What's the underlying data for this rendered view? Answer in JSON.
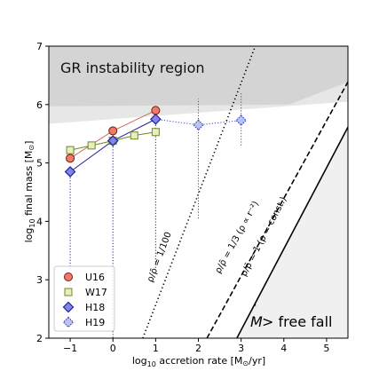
{
  "chart_data": {
    "type": "scatter",
    "title": "",
    "xlabel_prefix": "log",
    "xlabel_sub": "10",
    "xlabel_text": " accretion rate [M",
    "xlabel_sun": "⊙",
    "xlabel_end": "/yr]",
    "ylabel_prefix": "log",
    "ylabel_sub": "10",
    "ylabel_text": " final mass  [M",
    "ylabel_sun": "⊙",
    "ylabel_end": "]",
    "xlim": [
      -1.5,
      5.5
    ],
    "ylim": [
      2,
      7
    ],
    "x_ticks": [
      -1,
      0,
      1,
      2,
      3,
      4,
      5
    ],
    "x_tick_labels": [
      "−1",
      "0",
      "1",
      "2",
      "3",
      "4",
      "5"
    ],
    "y_ticks": [
      2,
      3,
      4,
      5,
      6,
      7
    ],
    "y_tick_labels": [
      "2",
      "3",
      "4",
      "5",
      "6",
      "7"
    ],
    "region_label": "GR instability region",
    "freefall_label_pre": "M",
    "freefall_label_post": " > free fall",
    "colors": {
      "gr_dark": "#d4d4d4",
      "gr_light": "#e7e7e7",
      "freefall": "#f0f0f0",
      "U16": "#f07a68",
      "U16_line": "#c57060",
      "W17": "#e6efc2",
      "W17_edge": "#6e8a1e",
      "H18": "#7f86e3",
      "H18_edge": "#20239a",
      "H19": "#b9c3ee",
      "H19_edge": "#3a48c8"
    },
    "series": [
      {
        "name": "U16",
        "marker": "circle",
        "x": [
          -1,
          0,
          1
        ],
        "y": [
          5.08,
          5.55,
          5.9
        ]
      },
      {
        "name": "W17",
        "marker": "square",
        "x": [
          -1,
          -0.5,
          0,
          0.5,
          1
        ],
        "y": [
          5.22,
          5.3,
          5.38,
          5.47,
          5.53
        ]
      },
      {
        "name": "H18",
        "marker": "diamond",
        "x": [
          -1,
          0,
          1
        ],
        "y": [
          4.85,
          5.38,
          5.75
        ],
        "lower_errors": [
          [
            -1,
            2.6
          ],
          [
            0,
            2.0
          ],
          [
            1,
            3.2
          ]
        ]
      },
      {
        "name": "H19",
        "marker": "dotted-diamond",
        "x": [
          2,
          3
        ],
        "y": [
          5.65,
          5.73
        ],
        "errors": [
          [
            2,
            4.05,
            6.1
          ],
          [
            3,
            5.3,
            6.2
          ]
        ]
      }
    ],
    "reference_lines": [
      {
        "label": "ρ/ρ̄ = 1/100",
        "style": "dotted",
        "x0": 0.7,
        "slope": 1.9
      },
      {
        "label": "ρ/ρ̄ = 1/3  (ρ ∝ r⁻²)",
        "style": "dashed",
        "x0": 2.2,
        "slope": 1.33
      },
      {
        "label": "ρ/ρ̄ = 1  (ρ = const.)",
        "style": "solid",
        "x0": 2.9,
        "slope": 1.39
      }
    ],
    "gr_boundary": {
      "x": [
        -1.5,
        5.5
      ],
      "y": [
        5.67,
        6.05
      ]
    },
    "legend_position": "lower-left",
    "grid": false
  }
}
